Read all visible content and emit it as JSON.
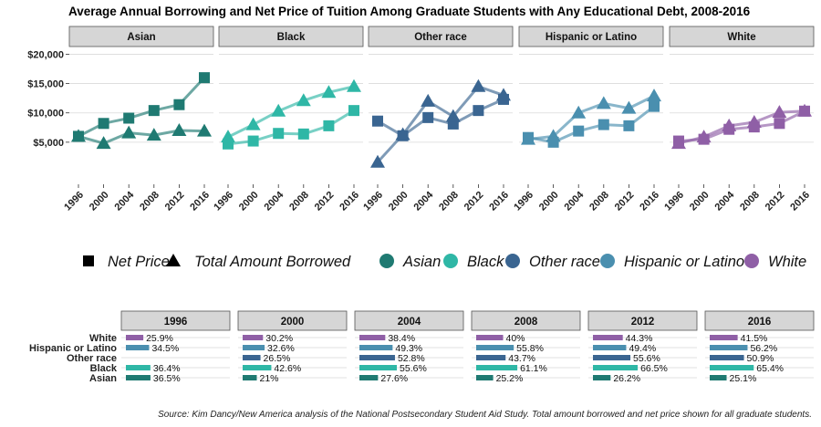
{
  "title": "Average Annual Borrowing and Net Price of Tuition Among Graduate Students with Any Educational Debt, 2008-2016",
  "source": "Source: Kim Dancy/New America analysis of the National Postsecondary Student Aid Study. Total amount borrowed and net price shown for all graduate students.",
  "colors": {
    "Asian": "#1f7a72",
    "Black": "#2fb7a6",
    "Other race": "#3a6591",
    "Hispanic or Latino": "#4a8faf",
    "White": "#8f5fa6",
    "strip_fill": "#d6d6d6",
    "gridline": "#d9d9d9"
  },
  "legend": {
    "shapes": [
      {
        "label": "Net Price",
        "icon": "square"
      },
      {
        "label": "Total Amount Borrowed",
        "icon": "triangle"
      }
    ],
    "groups": [
      "Asian",
      "Black",
      "Other race",
      "Hispanic or Latino",
      "White"
    ]
  },
  "chart_data": [
    {
      "type": "line",
      "facets": [
        "Asian",
        "Black",
        "Other race",
        "Hispanic or Latino",
        "White"
      ],
      "x": [
        "1996",
        "2000",
        "2004",
        "2008",
        "2012",
        "2016"
      ],
      "y_ticks": [
        "$5,000",
        "$10,000",
        "$15,000",
        "$20,000"
      ],
      "y_tick_values": [
        5000,
        10000,
        15000,
        20000
      ],
      "ylim": [
        0,
        21000
      ],
      "grid": true,
      "legend_position": "bottom",
      "series": {
        "Asian": {
          "Net Price": [
            6000,
            8200,
            9100,
            10400,
            11400,
            16000
          ],
          "Total Amount Borrowed": [
            6000,
            4800,
            6600,
            6200,
            7000,
            6900
          ]
        },
        "Black": {
          "Net Price": [
            4700,
            5200,
            6500,
            6400,
            7800,
            10400
          ],
          "Total Amount Borrowed": [
            5900,
            8000,
            10300,
            12100,
            13500,
            14500
          ]
        },
        "Other race": {
          "Net Price": [
            8600,
            6100,
            9200,
            8100,
            10400,
            12300
          ],
          "Total Amount Borrowed": [
            1600,
            6300,
            12000,
            9400,
            14500,
            13000
          ]
        },
        "Hispanic or Latino": {
          "Net Price": [
            5800,
            5000,
            6900,
            8000,
            7800,
            11100
          ],
          "Total Amount Borrowed": [
            5500,
            6000,
            10000,
            11600,
            10800,
            12900
          ]
        },
        "White": {
          "Net Price": [
            5200,
            5500,
            7200,
            7600,
            8200,
            10300
          ],
          "Total Amount Borrowed": [
            4800,
            5900,
            7800,
            8400,
            10100,
            10300
          ]
        }
      }
    },
    {
      "type": "bar",
      "orientation": "horizontal",
      "facets": [
        "1996",
        "2000",
        "2004",
        "2008",
        "2012",
        "2016"
      ],
      "categories": [
        "White",
        "Hispanic or Latino",
        "Other race",
        "Black",
        "Asian"
      ],
      "xlim": [
        0,
        100
      ],
      "values": {
        "1996": {
          "White": 25.9,
          "Hispanic or Latino": 34.5,
          "Other race": null,
          "Black": 36.4,
          "Asian": 36.5
        },
        "2000": {
          "White": 30.2,
          "Hispanic or Latino": 32.6,
          "Other race": 26.5,
          "Black": 42.6,
          "Asian": 21
        },
        "2004": {
          "White": 38.4,
          "Hispanic or Latino": 49.3,
          "Other race": 52.8,
          "Black": 55.6,
          "Asian": 27.6
        },
        "2008": {
          "White": 40,
          "Hispanic or Latino": 55.8,
          "Other race": 43.7,
          "Black": 61.1,
          "Asian": 25.2
        },
        "2012": {
          "White": 44.3,
          "Hispanic or Latino": 49.4,
          "Other race": 55.6,
          "Black": 66.5,
          "Asian": 26.2
        },
        "2016": {
          "White": 41.5,
          "Hispanic or Latino": 56.2,
          "Other race": 50.9,
          "Black": 65.4,
          "Asian": 25.1
        }
      },
      "labels": {
        "1996": {
          "White": "25.9%",
          "Hispanic or Latino": "34.5%",
          "Other race": "",
          "Black": "36.4%",
          "Asian": "36.5%"
        },
        "2000": {
          "White": "30.2%",
          "Hispanic or Latino": "32.6%",
          "Other race": "26.5%",
          "Black": "42.6%",
          "Asian": "21%"
        },
        "2004": {
          "White": "38.4%",
          "Hispanic or Latino": "49.3%",
          "Other race": "52.8%",
          "Black": "55.6%",
          "Asian": "27.6%"
        },
        "2008": {
          "White": "40%",
          "Hispanic or Latino": "55.8%",
          "Other race": "43.7%",
          "Black": "61.1%",
          "Asian": "25.2%"
        },
        "2012": {
          "White": "44.3%",
          "Hispanic or Latino": "49.4%",
          "Other race": "55.6%",
          "Black": "66.5%",
          "Asian": "26.2%"
        },
        "2016": {
          "White": "41.5%",
          "Hispanic or Latino": "56.2%",
          "Other race": "50.9%",
          "Black": "65.4%",
          "Asian": "25.1%"
        }
      }
    }
  ]
}
